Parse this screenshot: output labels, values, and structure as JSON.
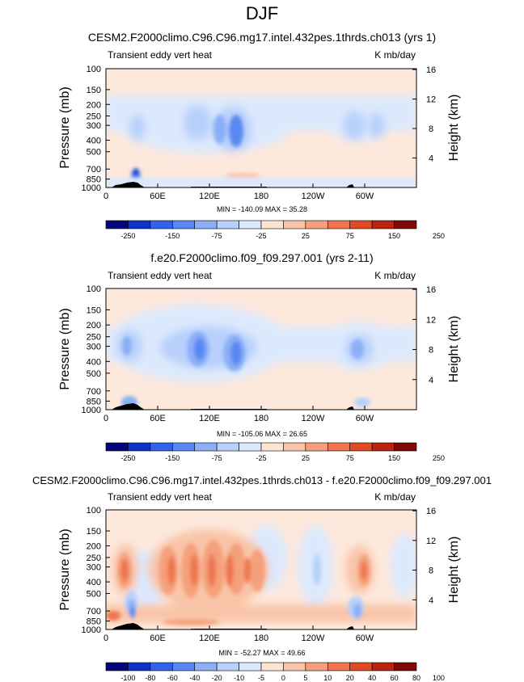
{
  "figure": {
    "title": "DJF"
  },
  "colors": {
    "neg": [
      "#05057a",
      "#0d34c9",
      "#2f63ea",
      "#5a88f2",
      "#8aaff7",
      "#b8d0fb",
      "#dce9fd"
    ],
    "neg_diff": [
      "#05057a",
      "#0d34c9",
      "#2f63ea",
      "#5a88f2",
      "#8aaff7",
      "#b8d0fb",
      "#dce9fd"
    ],
    "pos": [
      "#fde4d2",
      "#f9c4a8",
      "#f5a07c",
      "#ef7450",
      "#df4a24",
      "#b82410",
      "#7c0a05"
    ],
    "background": "#fde8dc",
    "topography": "#000000"
  },
  "chart_data": [
    {
      "type": "heatmap",
      "title": "CESM2.F2000climo.C96.C96.mg17.intel.432pes.1thrds.ch013 (yrs 1)",
      "left_label": "Transient eddy vert heat",
      "right_label": "K mb/day",
      "xlabel": "",
      "ylabel": "Pressure (mb)",
      "ylabel_right": "Height (km)",
      "x_ticks": [
        "0",
        "60E",
        "120E",
        "180",
        "120W",
        "60W"
      ],
      "x_tick_values": [
        0,
        60,
        120,
        180,
        240,
        300
      ],
      "xlim": [
        0,
        360
      ],
      "y_ticks": [
        "100",
        "150",
        "200",
        "250",
        "300",
        "400",
        "500",
        "700",
        "850",
        "1000"
      ],
      "y_tick_values": [
        100,
        150,
        200,
        250,
        300,
        400,
        500,
        700,
        850,
        1000
      ],
      "ylim": [
        1000,
        100
      ],
      "y_ticks_right": [
        "16",
        "12",
        "8",
        "4"
      ],
      "y_tick_right_values": [
        16,
        12,
        8,
        4
      ],
      "stats": "MIN = -140.09  MAX =  35.28",
      "colorbar": {
        "levels": [
          -250,
          -200,
          -150,
          -100,
          -75,
          -50,
          -25,
          0,
          25,
          50,
          75,
          100,
          150,
          200,
          250
        ],
        "labels": [
          "-250",
          "-150",
          "-75",
          "-25",
          "25",
          "75",
          "150",
          "250"
        ]
      }
    },
    {
      "type": "heatmap",
      "title": "f.e20.F2000climo.f09_f09.297.001 (yrs 2-11)",
      "left_label": "Transient eddy vert heat",
      "right_label": "K mb/day",
      "xlabel": "",
      "ylabel": "Pressure (mb)",
      "ylabel_right": "Height (km)",
      "x_ticks": [
        "0",
        "60E",
        "120E",
        "180",
        "120W",
        "60W"
      ],
      "x_tick_values": [
        0,
        60,
        120,
        180,
        240,
        300
      ],
      "xlim": [
        0,
        360
      ],
      "y_ticks": [
        "100",
        "150",
        "200",
        "250",
        "300",
        "400",
        "500",
        "700",
        "850",
        "1000"
      ],
      "y_tick_values": [
        100,
        150,
        200,
        250,
        300,
        400,
        500,
        700,
        850,
        1000
      ],
      "ylim": [
        1000,
        100
      ],
      "y_ticks_right": [
        "16",
        "12",
        "8",
        "4"
      ],
      "y_tick_right_values": [
        16,
        12,
        8,
        4
      ],
      "stats": "MIN = -105.06  MAX =  26.65",
      "colorbar": {
        "levels": [
          -250,
          -200,
          -150,
          -100,
          -75,
          -50,
          -25,
          0,
          25,
          50,
          75,
          100,
          150,
          200,
          250
        ],
        "labels": [
          "-250",
          "-150",
          "-75",
          "-25",
          "25",
          "75",
          "150",
          "250"
        ]
      }
    },
    {
      "type": "heatmap",
      "title": "CESM2.F2000climo.C96.C96.mg17.intel.432pes.1thrds.ch013 - f.e20.F2000climo.f09_f09.297.001",
      "left_label": "Transient eddy vert heat",
      "right_label": "K mb/day",
      "xlabel": "",
      "ylabel": "Pressure (mb)",
      "ylabel_right": "Height (km)",
      "x_ticks": [
        "0",
        "60E",
        "120E",
        "180",
        "120W",
        "60W"
      ],
      "x_tick_values": [
        0,
        60,
        120,
        180,
        240,
        300
      ],
      "xlim": [
        0,
        360
      ],
      "y_ticks": [
        "100",
        "150",
        "200",
        "250",
        "300",
        "400",
        "500",
        "700",
        "850",
        "1000"
      ],
      "y_tick_values": [
        100,
        150,
        200,
        250,
        300,
        400,
        500,
        700,
        850,
        1000
      ],
      "ylim": [
        1000,
        100
      ],
      "y_ticks_right": [
        "16",
        "12",
        "8",
        "4"
      ],
      "y_tick_right_values": [
        16,
        12,
        8,
        4
      ],
      "stats": "MIN = -52.27  MAX =  49.66",
      "colorbar": {
        "levels": [
          -100,
          -80,
          -60,
          -40,
          -20,
          -10,
          -5,
          0,
          5,
          10,
          20,
          40,
          60,
          80,
          100
        ],
        "labels": [
          "-100",
          "-80",
          "-60",
          "-40",
          "-20",
          "-10",
          "-5",
          "0",
          "5",
          "10",
          "20",
          "40",
          "60",
          "80",
          "100"
        ]
      }
    }
  ]
}
